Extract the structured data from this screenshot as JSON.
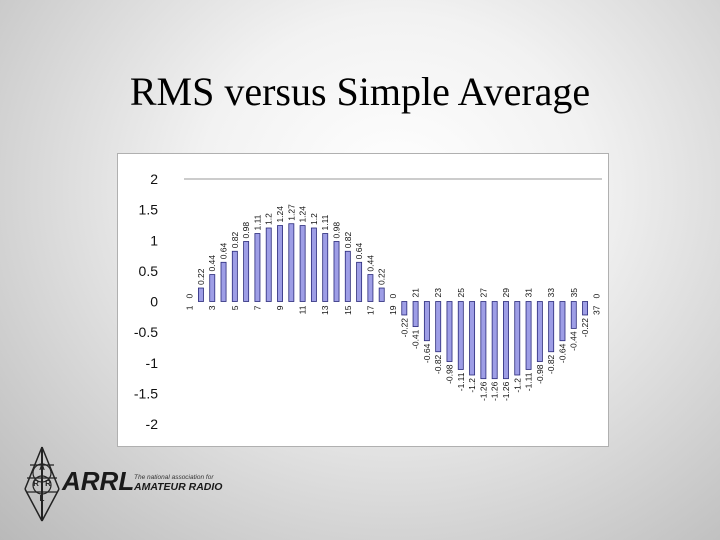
{
  "slide": {
    "title": "RMS versus Simple Average"
  },
  "logo": {
    "wordmark": "ARRL",
    "tagline_line1": "The national association for",
    "tagline_line2": "AMATEUR RADIO",
    "badge_letters": [
      "A",
      "R",
      "R",
      "L"
    ]
  },
  "chart_data": {
    "type": "bar",
    "title": "",
    "xlabel": "",
    "ylabel": "",
    "ylim": [
      -2,
      2
    ],
    "yticks": [
      2,
      1.5,
      1,
      0.5,
      0,
      -0.5,
      -1,
      -1.5,
      -2
    ],
    "ytick_labels": [
      "2",
      "1.5",
      "1",
      "0.5",
      "0",
      "-0.5",
      "-1",
      "-1.5",
      "-2"
    ],
    "grid": "horizontal-at-top-only",
    "bar_color": "#9e9ee6",
    "bar_edge_color": "#2a2a7a",
    "categories": [
      1,
      2,
      3,
      4,
      5,
      6,
      7,
      8,
      9,
      10,
      11,
      12,
      13,
      14,
      15,
      16,
      17,
      18,
      19,
      20,
      21,
      22,
      23,
      24,
      25,
      26,
      27,
      28,
      29,
      30,
      31,
      32,
      33,
      34,
      35,
      36,
      37
    ],
    "category_labels_shown": [
      "1",
      "3",
      "5",
      "7",
      "9",
      "11",
      "13",
      "15",
      "17",
      "19",
      "21",
      "23",
      "25",
      "27",
      "29",
      "31",
      "33",
      "35",
      "37"
    ],
    "values": [
      0,
      0.22,
      0.44,
      0.64,
      0.82,
      0.98,
      1.11,
      1.2,
      1.24,
      1.27,
      1.24,
      1.2,
      1.11,
      0.98,
      0.82,
      0.64,
      0.44,
      0.22,
      0,
      -0.22,
      -0.41,
      -0.64,
      -0.82,
      -0.98,
      -1.11,
      -1.2,
      -1.26,
      -1.26,
      -1.26,
      -1.2,
      -1.11,
      -0.98,
      -0.82,
      -0.64,
      -0.44,
      -0.22,
      0
    ],
    "data_labels": [
      "0",
      "0.22",
      "0.44",
      "0.64",
      "0.82",
      "0.98",
      "1.11",
      "1.2",
      "1.24",
      "1.27",
      "1.24",
      "1.2",
      "1.11",
      "0.98",
      "0.82",
      "0.64",
      "0.44",
      "0.22",
      "0",
      "-0.22",
      "-0.41",
      "-0.64",
      "-0.82",
      "-0.98",
      "-1.11",
      "-1.2",
      "-1.26",
      "-1.26",
      "-1.26",
      "-1.2",
      "-1.11",
      "-0.98",
      "-0.82",
      "-0.64",
      "-0.44",
      "-0.22",
      "0"
    ]
  }
}
